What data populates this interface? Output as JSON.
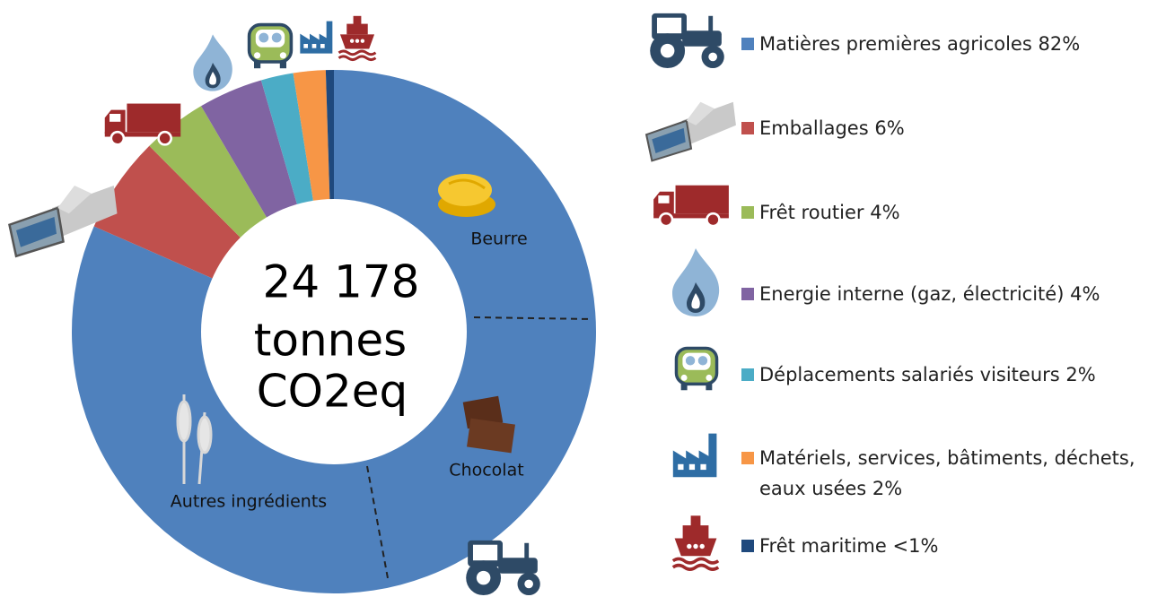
{
  "chart_data": {
    "type": "donut",
    "categories": [
      "Matières premières agricoles",
      "Emballages",
      "Frêt routier",
      "Energie interne (gaz, électricité)",
      "Déplacements salariés visiteurs",
      "Matériels, services, bâtiments, déchets, eaux usées",
      "Frêt maritime"
    ],
    "values": [
      82,
      6,
      4,
      4,
      2,
      2,
      0.5
    ],
    "value_labels": [
      "82%",
      "6%",
      "4%",
      "4%",
      "2%",
      "2%",
      "<1%"
    ],
    "colors": [
      "#4f81bd",
      "#c0504d",
      "#9bbb59",
      "#8064a2",
      "#4bacc6",
      "#f79646",
      "#1f497d"
    ],
    "center_text": [
      "24 178",
      "tonnes",
      "CO2eq"
    ],
    "annotations": [
      "Beurre",
      "Chocolat",
      "Autres ingrédients"
    ]
  }
}
